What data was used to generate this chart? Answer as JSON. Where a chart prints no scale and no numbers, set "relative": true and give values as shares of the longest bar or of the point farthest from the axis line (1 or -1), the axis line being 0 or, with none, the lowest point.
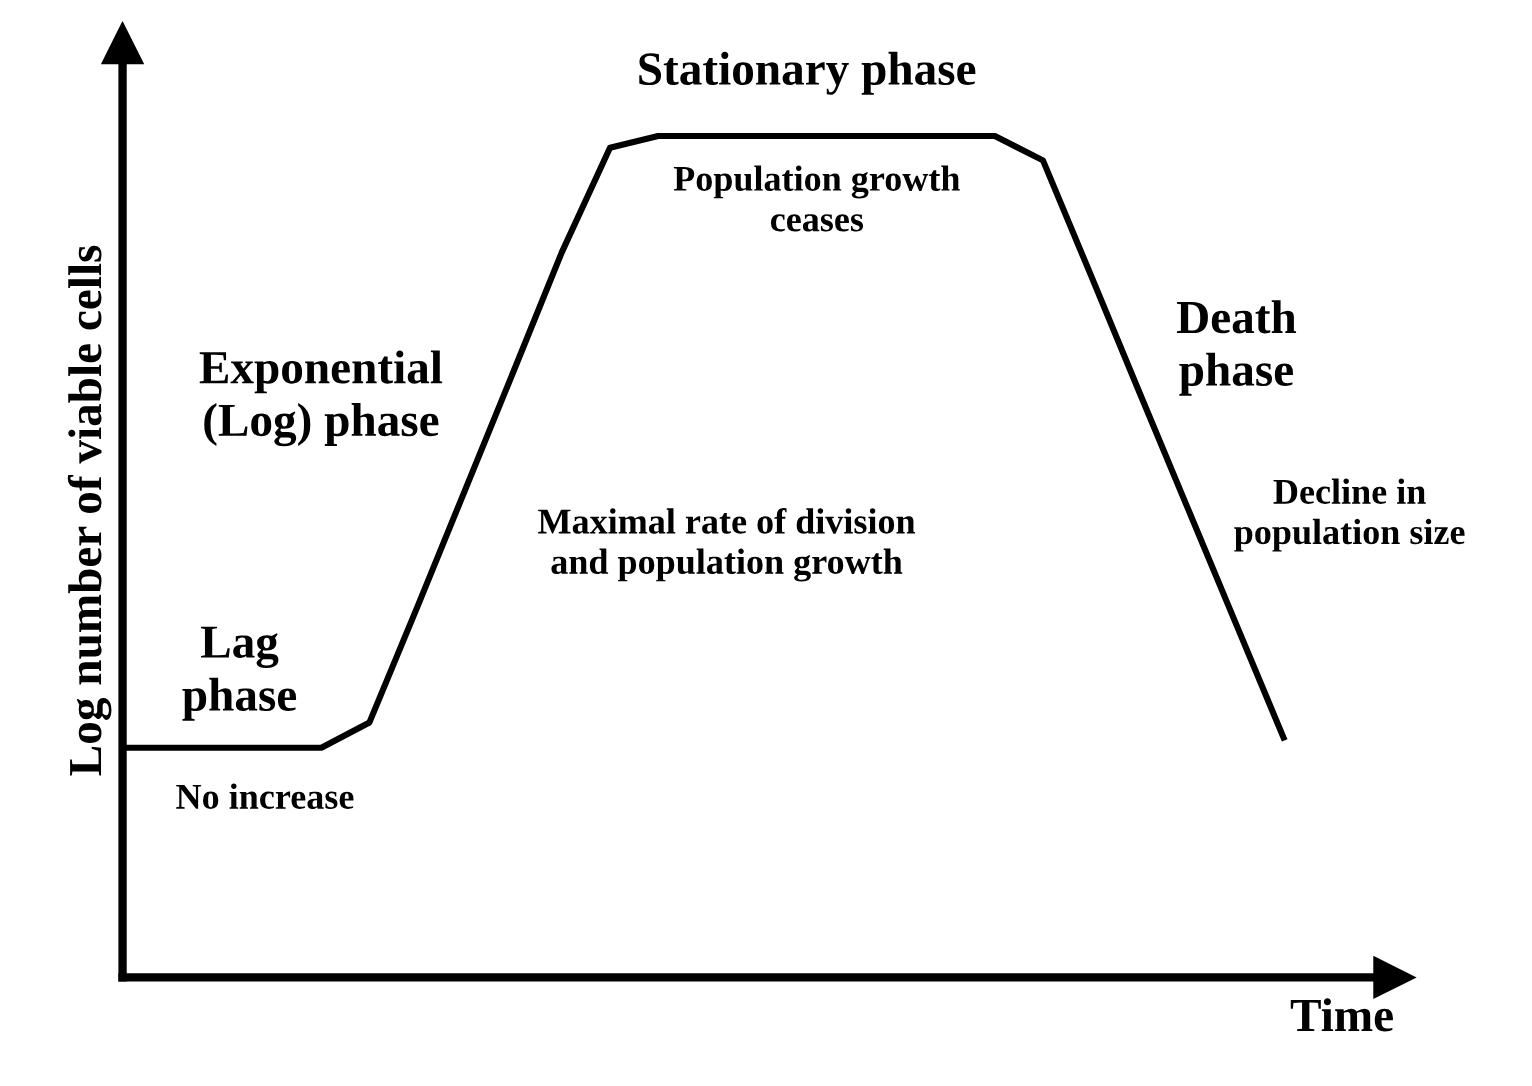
{
  "chart_data": {
    "type": "line",
    "relative": true,
    "xlabel": "Time",
    "ylabel": "Log number of viable cells",
    "categories": [
      null,
      null,
      null,
      null,
      null,
      null,
      null,
      null,
      null,
      null,
      null,
      null,
      null,
      null,
      null,
      null,
      null,
      null,
      null,
      null,
      null,
      null,
      null,
      null,
      null
    ],
    "series": [
      {
        "color": "#000000",
        "values": [
          0.273,
          0.273,
          0.273,
          0.273,
          0.273,
          0.303,
          0.441,
          0.581,
          0.721,
          0.862,
          0.986,
          1,
          1,
          1,
          1,
          1,
          1,
          1,
          1,
          0.971,
          0.834,
          0.696,
          0.559,
          0.422,
          0.285
        ]
      }
    ],
    "annotations": [
      "Stationary phase",
      "Population growth\nceases",
      "Exponential\n(Log) phase",
      "Maximal rate of division\nand population growth",
      "Lag\nphase",
      "No increase",
      "Death\nphase",
      "Decline in\npopulation size"
    ],
    "legend": false,
    "marker": "none",
    "line_style": "solid"
  }
}
